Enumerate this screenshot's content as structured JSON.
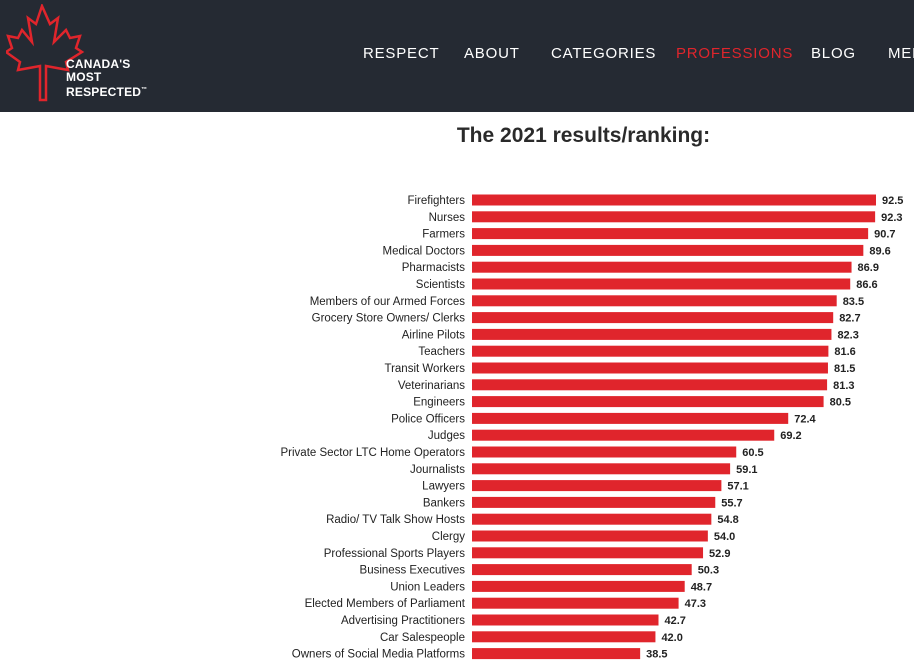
{
  "brand": {
    "line1": "CANADA'S",
    "line2": "MOST",
    "line3": "RESPECTED",
    "tm": "™",
    "logo_icon": "maple-leaf-icon",
    "accent_color": "#e0252c"
  },
  "nav": {
    "items": [
      {
        "label": "RESPECT",
        "active": false
      },
      {
        "label": "ABOUT",
        "active": false
      },
      {
        "label": "CATEGORIES",
        "active": false
      },
      {
        "label": "PROFESSIONS",
        "active": true
      },
      {
        "label": "BLOG",
        "active": false
      },
      {
        "label": "MED",
        "active": false
      }
    ]
  },
  "page": {
    "title": "The 2021 results/ranking:"
  },
  "chart_data": {
    "type": "bar",
    "orientation": "horizontal",
    "bar_color": "#e0252c",
    "categories": [
      "Firefighters",
      "Nurses",
      "Farmers",
      "Medical Doctors",
      "Pharmacists",
      "Scientists",
      "Members of our Armed Forces",
      "Grocery Store Owners/ Clerks",
      "Airline Pilots",
      "Teachers",
      "Transit Workers",
      "Veterinarians",
      "Engineers",
      "Police Officers",
      "Judges",
      "Private Sector LTC Home Operators",
      "Journalists",
      "Lawyers",
      "Bankers",
      "Radio/ TV Talk Show Hosts",
      "Clergy",
      "Professional Sports Players",
      "Business Executives",
      "Union Leaders",
      "Elected Members of Parliament",
      "Advertising Practitioners",
      "Car Salespeople",
      "Owners of Social Media Platforms"
    ],
    "values": [
      92.5,
      92.3,
      90.7,
      89.6,
      86.9,
      86.6,
      83.5,
      82.7,
      82.3,
      81.6,
      81.5,
      81.3,
      80.5,
      72.4,
      69.2,
      60.5,
      59.1,
      57.1,
      55.7,
      54.8,
      54.0,
      52.9,
      50.3,
      48.7,
      47.3,
      42.7,
      42.0,
      38.5
    ],
    "value_labels": [
      "92.5",
      "92.3",
      "90.7",
      "89.6",
      "86.9",
      "86.6",
      "83.5",
      "82.7",
      "82.3",
      "81.6",
      "81.5",
      "81.3",
      "80.5",
      "72.4",
      "69.2",
      "60.5",
      "59.1",
      "57.1",
      "55.7",
      "54.8",
      "54.0",
      "52.9",
      "50.3",
      "48.7",
      "47.3",
      "42.7",
      "42.0",
      "38.5"
    ],
    "title": "",
    "xlabel": "",
    "ylabel": ""
  }
}
